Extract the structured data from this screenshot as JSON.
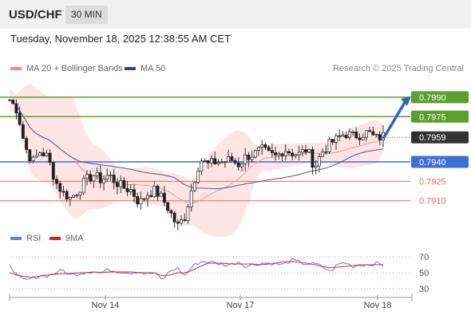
{
  "header": {
    "pair": "USD/CHF",
    "timeframe": "30 MIN"
  },
  "timestamp": "Tuesday, November 18, 2025 12:38:55 AM CET",
  "credit": "Research © 2025 Trading Central",
  "colors": {
    "resistance": "#5aa02c",
    "pivot": "#3f6fd6",
    "support": "#e46b6b",
    "last": "#333333",
    "bands": "#fde1e1",
    "ma20": "#f09a9a",
    "ma50": "#4a5a8c",
    "arrow": "#2f66b1",
    "rsi": "#5b7fd6",
    "rsi_ma": "#d92626"
  },
  "chart_data": [
    {
      "type": "line",
      "legend": [
        {
          "label": "MA 20 + Bollinger Bands",
          "color": "#f28b82"
        },
        {
          "label": "MA 50",
          "color": "#2b4d87"
        }
      ],
      "ylim": [
        0.78895,
        0.80035
      ],
      "levels": [
        {
          "value": 0.799,
          "label": "0.7990",
          "kind": "resistance"
        },
        {
          "value": 0.7975,
          "label": "0.7975",
          "kind": "resistance"
        },
        {
          "value": 0.7959,
          "label": "0.7959",
          "kind": "last"
        },
        {
          "value": 0.794,
          "label": "0.7940",
          "kind": "pivot"
        },
        {
          "value": 0.7925,
          "label": "0.7925",
          "kind": "support"
        },
        {
          "value": 0.791,
          "label": "0.7910",
          "kind": "support"
        }
      ],
      "xlabels": [
        "Nov 14",
        "Nov 17",
        "Nov 18"
      ],
      "price_path": [
        0.7988,
        0.798,
        0.7952,
        0.794,
        0.7948,
        0.7944,
        0.7925,
        0.7916,
        0.7912,
        0.7918,
        0.7926,
        0.793,
        0.7926,
        0.793,
        0.7924,
        0.792,
        0.7918,
        0.7908,
        0.7915,
        0.7918,
        0.7912,
        0.7902,
        0.789,
        0.7898,
        0.7922,
        0.7942,
        0.7938,
        0.794,
        0.794,
        0.7942,
        0.7938,
        0.7944,
        0.7946,
        0.795,
        0.7946,
        0.7944,
        0.795,
        0.7947,
        0.7946,
        0.795,
        0.7936,
        0.7948,
        0.7954,
        0.7958,
        0.7962,
        0.796,
        0.7961,
        0.7963,
        0.7958,
        0.796
      ],
      "projection": [
        0.7959,
        0.799
      ]
    },
    {
      "type": "line",
      "legend": [
        {
          "label": "RSI",
          "color": "#5b7fd6"
        },
        {
          "label": "9MA",
          "color": "#e02020"
        }
      ],
      "ylim": [
        20,
        80
      ],
      "yticks": [
        70,
        50,
        30
      ],
      "rsi": [
        62,
        45,
        40,
        43,
        47,
        46,
        50,
        53,
        47,
        49,
        51,
        52,
        50,
        54,
        52,
        51,
        50,
        52,
        48,
        50,
        40,
        52,
        56,
        46,
        58,
        64,
        64,
        62,
        60,
        60,
        64,
        58,
        60,
        62,
        62,
        61,
        60,
        66,
        63,
        61,
        61,
        58,
        51,
        60,
        63,
        58,
        60,
        60,
        62,
        60
      ],
      "rsi_ma": [
        50,
        47,
        45,
        44,
        46,
        47,
        48,
        49,
        49,
        50,
        50,
        51,
        50,
        51,
        51,
        51,
        51,
        50,
        50,
        50,
        46,
        47,
        50,
        50,
        53,
        58,
        62,
        62,
        62,
        61,
        61,
        61,
        61,
        60,
        61,
        62,
        64,
        64,
        63,
        62,
        60,
        58,
        56,
        57,
        58,
        59,
        60,
        60,
        60,
        60
      ]
    }
  ]
}
